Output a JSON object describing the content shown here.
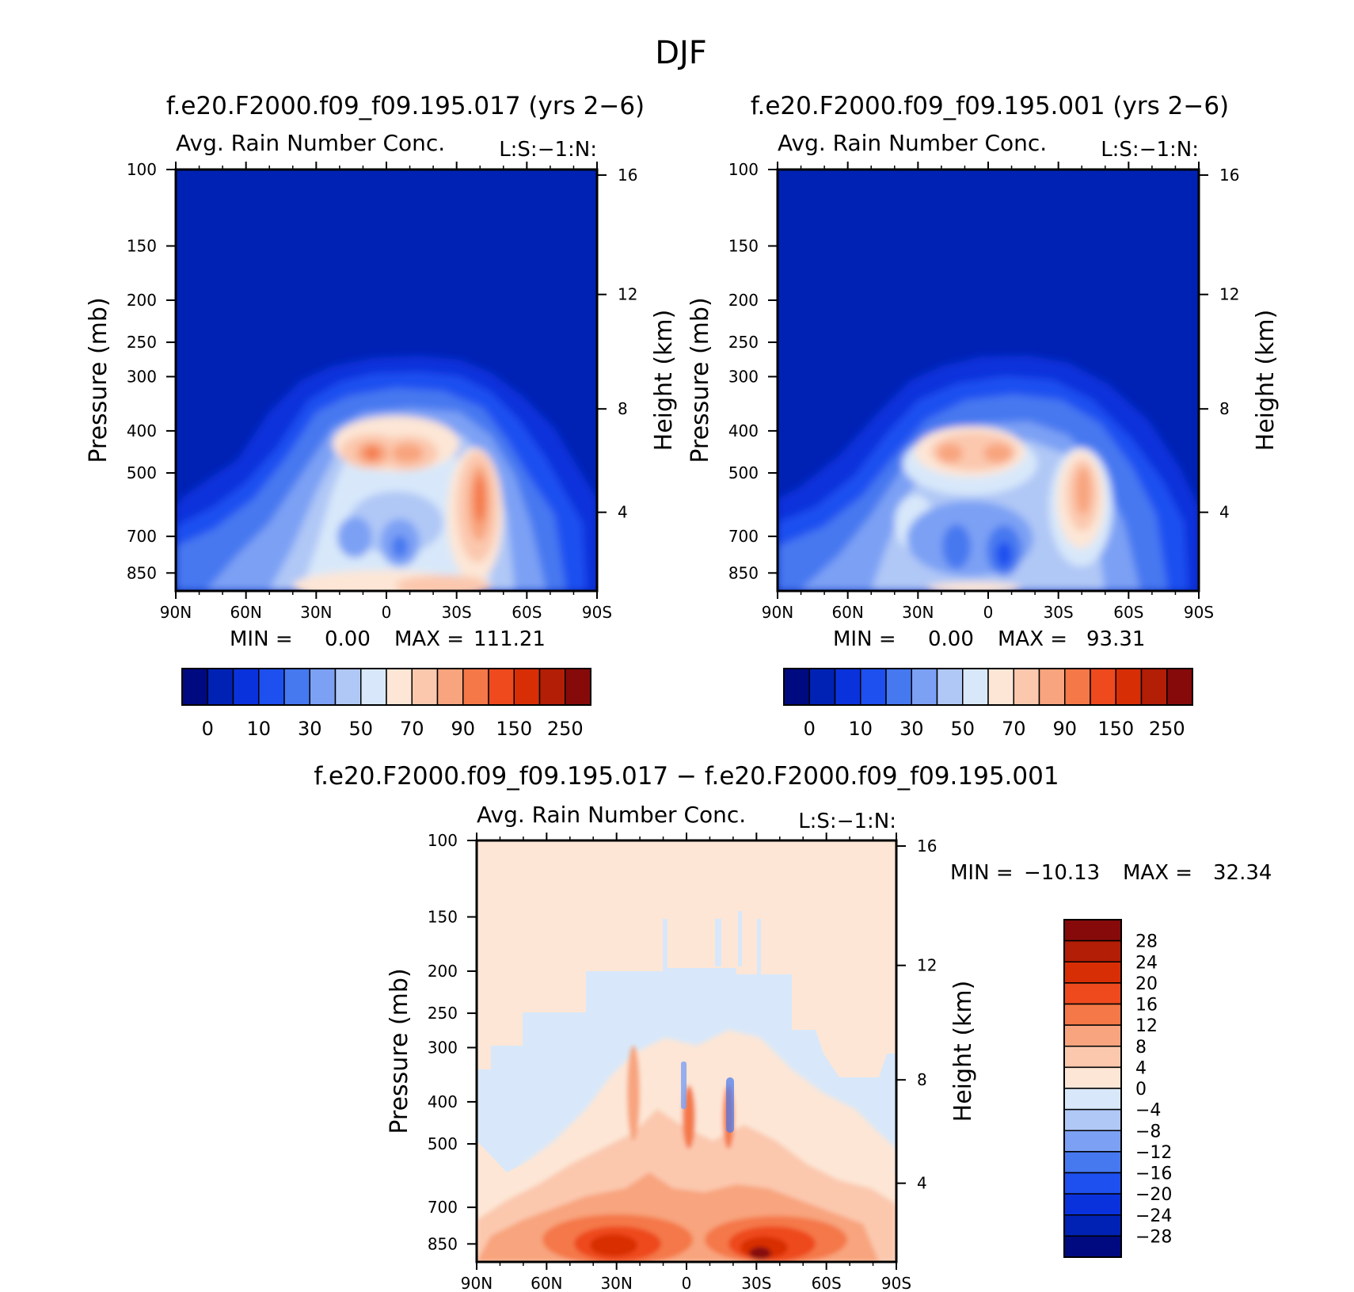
{
  "figure_title": "DJF",
  "chart_data": [
    {
      "type": "heatmap",
      "id": "case1",
      "title": "f.e20.F2000.f09_f09.195.017 (yrs 2−6)",
      "variable": "Avg. Rain Number Conc.",
      "units_label": "L:S:−1:N:",
      "xlabel": "",
      "ylabel": "Pressure (mb)",
      "ylabel_right": "Height (km)",
      "x_ticks": [
        "90N",
        "60N",
        "30N",
        "0",
        "30S",
        "60S",
        "90S"
      ],
      "y_ticks": [
        "100",
        "150",
        "200",
        "250",
        "300",
        "400",
        "500",
        "700",
        "850"
      ],
      "y_right_ticks": [
        "16",
        "12",
        "8",
        "4"
      ],
      "min_label": "MIN =",
      "min_value": "0.00",
      "max_label": "MAX =",
      "max_value": "111.21",
      "colorbar_labels": [
        "0",
        "10",
        "30",
        "50",
        "70",
        "90",
        "150",
        "250"
      ]
    },
    {
      "type": "heatmap",
      "id": "case2",
      "title": "f.e20.F2000.f09_f09.195.001 (yrs 2−6)",
      "variable": "Avg. Rain Number Conc.",
      "units_label": "L:S:−1:N:",
      "xlabel": "",
      "ylabel": "Pressure (mb)",
      "ylabel_right": "Height (km)",
      "x_ticks": [
        "90N",
        "60N",
        "30N",
        "0",
        "30S",
        "60S",
        "90S"
      ],
      "y_ticks": [
        "100",
        "150",
        "200",
        "250",
        "300",
        "400",
        "500",
        "700",
        "850"
      ],
      "y_right_ticks": [
        "16",
        "12",
        "8",
        "4"
      ],
      "min_label": "MIN =",
      "min_value": "0.00",
      "max_label": "MAX =",
      "max_value": "93.31",
      "colorbar_labels": [
        "0",
        "10",
        "30",
        "50",
        "70",
        "90",
        "150",
        "250"
      ]
    },
    {
      "type": "heatmap",
      "id": "diff",
      "title": "f.e20.F2000.f09_f09.195.017 − f.e20.F2000.f09_f09.195.001",
      "variable": "Avg. Rain Number Conc.",
      "units_label": "L:S:−1:N:",
      "xlabel": "",
      "ylabel": "Pressure (mb)",
      "ylabel_right": "Height (km)",
      "x_ticks": [
        "90N",
        "60N",
        "30N",
        "0",
        "30S",
        "60S",
        "90S"
      ],
      "y_ticks": [
        "100",
        "150",
        "200",
        "250",
        "300",
        "400",
        "500",
        "700",
        "850"
      ],
      "y_right_ticks": [
        "16",
        "12",
        "8",
        "4"
      ],
      "min_label": "MIN =",
      "min_value": "−10.13",
      "max_label": "MAX =",
      "max_value": "32.34",
      "colorbar_labels": [
        "28",
        "24",
        "20",
        "16",
        "12",
        "8",
        "4",
        "0",
        "−4",
        "−8",
        "−12",
        "−16",
        "−20",
        "−24",
        "−28"
      ]
    }
  ],
  "colors": {
    "sequential": [
      "#000a80",
      "#0022b4",
      "#0a32dc",
      "#1e50f0",
      "#4678f0",
      "#7ca0f4",
      "#b0c8f6",
      "#d8e8fa",
      "#fde6d6",
      "#fbc8ae",
      "#f8a47e",
      "#f47848",
      "#ee4a1e",
      "#d82e06",
      "#b21e06",
      "#860a0a"
    ],
    "diff_scale": [
      "#860a0a",
      "#b21e06",
      "#d82e06",
      "#ee4a1e",
      "#f47848",
      "#f8a47e",
      "#fbc8ae",
      "#fde6d6",
      "#d8e8fa",
      "#b0c8f6",
      "#7ca0f4",
      "#4678f0",
      "#1e50f0",
      "#0a32dc",
      "#0022b4",
      "#000a80"
    ]
  }
}
